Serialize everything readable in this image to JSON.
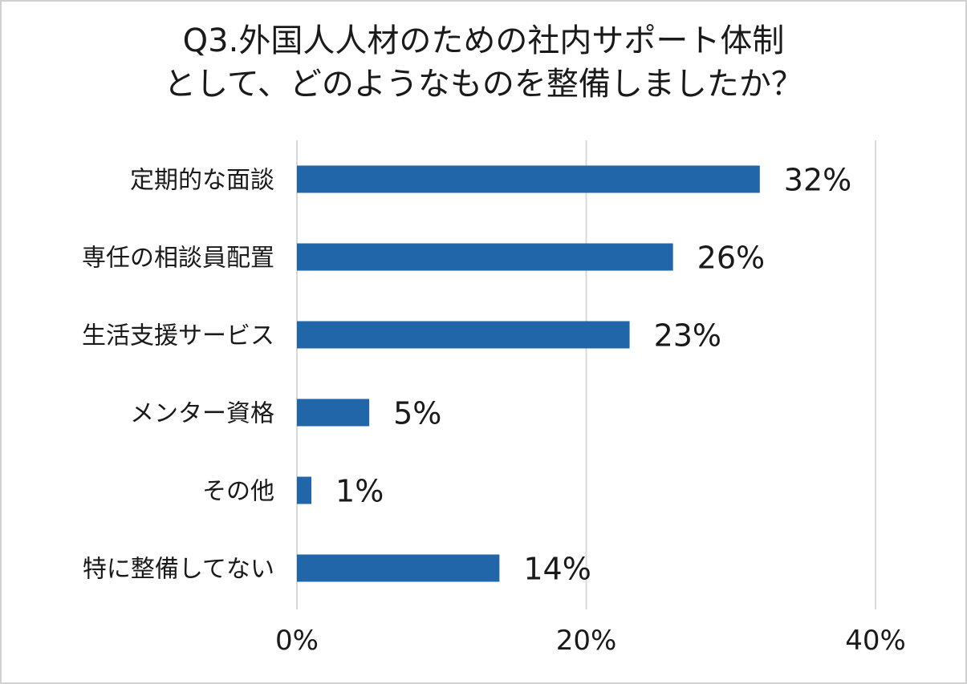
{
  "chart_data": {
    "type": "bar",
    "orientation": "horizontal",
    "title_lines": [
      "Q3.外国人人材のための社内サポート体制",
      "として、どのようなものを整備しましたか？"
    ],
    "categories": [
      "定期的な面談",
      "専任の相談員配置",
      "生活支援サービス",
      "メンター資格",
      "その他",
      "特に整備してない"
    ],
    "values": [
      32,
      26,
      23,
      5,
      1,
      14
    ],
    "value_labels": [
      "32%",
      "26%",
      "23%",
      "5%",
      "1%",
      "14%"
    ],
    "xlim": [
      0,
      40
    ],
    "x_ticks": [
      0,
      20,
      40
    ],
    "x_tick_labels": [
      "0%",
      "20%",
      "40%"
    ],
    "grid": "vertical",
    "legend": "none",
    "bar_color": "#2166a8",
    "grid_color": "#d9d9d9"
  }
}
